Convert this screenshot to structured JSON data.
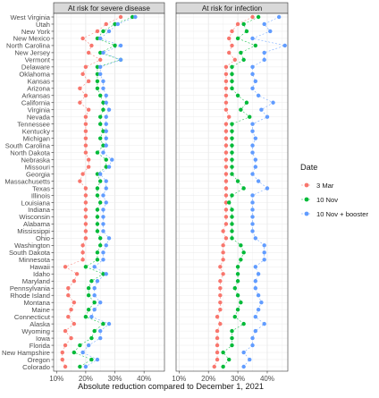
{
  "chart_data": {
    "type": "scatter",
    "xlabel": "Absolute reduction compared to December 1, 2021",
    "ylabel": "",
    "xlim": [
      0.09,
      0.47
    ],
    "x_ticks": [
      0.1,
      0.2,
      0.3,
      0.4
    ],
    "x_tick_labels": [
      "10%",
      "20%",
      "30%",
      "40%"
    ],
    "grid": true,
    "legend": {
      "title": "Date",
      "placement": "right",
      "entries": [
        {
          "name": "3 Mar",
          "color": "#F8766D"
        },
        {
          "name": "10 Nov",
          "color": "#00BA38"
        },
        {
          "name": "10 Nov + booster",
          "color": "#619CFF"
        }
      ]
    },
    "states": [
      "West Virginia",
      "Utah",
      "New York",
      "New Mexico",
      "North Carolina",
      "New Jersey",
      "Vermont",
      "Delaware",
      "Oklahoma",
      "Kansas",
      "Arizona",
      "Arkansas",
      "California",
      "Virginia",
      "Nevada",
      "Tennessee",
      "Kentucky",
      "Michigan",
      "South Carolina",
      "North Dakota",
      "Nebraska",
      "Missouri",
      "Georgia",
      "Massachusetts",
      "Texas",
      "Illinois",
      "Louisiana",
      "Indiana",
      "Wisconsin",
      "Alabama",
      "Mississippi",
      "Ohio",
      "Washington",
      "South Dakota",
      "Minnesota",
      "Hawaii",
      "Idaho",
      "Maryland",
      "Pennsylvania",
      "Rhode Island",
      "Montana",
      "Maine",
      "Connecticut",
      "Alaska",
      "Wyoming",
      "Iowa",
      "Florida",
      "New Hampshire",
      "Oregon",
      "Colorado"
    ],
    "panels": [
      {
        "title": "At risk for severe disease",
        "series": [
          {
            "name": "3 Mar",
            "values": [
              0.32,
              0.27,
              0.24,
              0.19,
              0.22,
              0.21,
              0.25,
              0.2,
              0.19,
              0.21,
              0.18,
              0.2,
              0.18,
              0.21,
              0.2,
              0.2,
              0.2,
              0.2,
              0.2,
              0.2,
              0.21,
              0.21,
              0.19,
              0.18,
              0.2,
              0.2,
              0.2,
              0.2,
              0.2,
              0.2,
              0.2,
              0.2,
              0.19,
              0.19,
              0.19,
              0.13,
              0.17,
              0.16,
              0.14,
              0.14,
              0.16,
              0.15,
              0.14,
              0.16,
              0.13,
              0.15,
              0.13,
              0.12,
              0.12,
              0.13
            ]
          },
          {
            "name": "10 Nov",
            "values": [
              0.36,
              0.3,
              0.26,
              0.24,
              0.3,
              0.25,
              0.32,
              0.24,
              0.24,
              0.24,
              0.24,
              0.25,
              0.26,
              0.26,
              0.25,
              0.25,
              0.26,
              0.25,
              0.26,
              0.24,
              0.27,
              0.27,
              0.24,
              0.25,
              0.24,
              0.24,
              0.25,
              0.24,
              0.24,
              0.24,
              0.24,
              0.25,
              0.25,
              0.24,
              0.24,
              0.2,
              0.26,
              0.22,
              0.21,
              0.21,
              0.23,
              0.21,
              0.2,
              0.26,
              0.23,
              0.22,
              0.18,
              0.16,
              0.22,
              0.18
            ]
          },
          {
            "name": "10 Nov + booster",
            "values": [
              0.37,
              0.31,
              0.28,
              0.25,
              0.32,
              0.26,
              0.32,
              0.25,
              0.25,
              0.26,
              0.26,
              0.27,
              0.27,
              0.28,
              0.27,
              0.27,
              0.27,
              0.27,
              0.27,
              0.26,
              0.29,
              0.28,
              0.25,
              0.27,
              0.27,
              0.26,
              0.27,
              0.26,
              0.26,
              0.26,
              0.26,
              0.28,
              0.27,
              0.26,
              0.26,
              0.23,
              0.27,
              0.24,
              0.23,
              0.23,
              0.25,
              0.23,
              0.22,
              0.28,
              0.25,
              0.25,
              0.21,
              0.19,
              0.24,
              0.2
            ]
          }
        ]
      },
      {
        "title": "At risk for infection",
        "series": [
          {
            "name": "3 Mar",
            "values": [
              0.35,
              0.3,
              0.28,
              0.27,
              0.28,
              0.27,
              0.29,
              0.26,
              0.26,
              0.26,
              0.26,
              0.26,
              0.26,
              0.26,
              0.27,
              0.26,
              0.26,
              0.26,
              0.26,
              0.26,
              0.26,
              0.26,
              0.26,
              0.26,
              0.26,
              0.26,
              0.26,
              0.26,
              0.26,
              0.26,
              0.25,
              0.26,
              0.25,
              0.25,
              0.25,
              0.24,
              0.25,
              0.24,
              0.24,
              0.24,
              0.24,
              0.24,
              0.23,
              0.24,
              0.23,
              0.23,
              0.23,
              0.23,
              0.23,
              0.22
            ]
          },
          {
            "name": "10 Nov",
            "values": [
              0.37,
              0.32,
              0.33,
              0.3,
              0.36,
              0.31,
              0.32,
              0.28,
              0.28,
              0.28,
              0.28,
              0.3,
              0.33,
              0.31,
              0.34,
              0.28,
              0.28,
              0.28,
              0.28,
              0.28,
              0.28,
              0.28,
              0.28,
              0.3,
              0.32,
              0.28,
              0.27,
              0.28,
              0.28,
              0.28,
              0.28,
              0.28,
              0.31,
              0.32,
              0.31,
              0.3,
              0.3,
              0.3,
              0.29,
              0.3,
              0.31,
              0.3,
              0.29,
              0.32,
              0.28,
              0.28,
              0.28,
              0.25,
              0.27,
              0.25
            ]
          },
          {
            "name": "10 Nov + booster",
            "values": [
              0.44,
              0.39,
              0.41,
              0.35,
              0.46,
              0.39,
              0.39,
              0.35,
              0.35,
              0.36,
              0.35,
              0.37,
              0.42,
              0.38,
              0.4,
              0.35,
              0.35,
              0.36,
              0.35,
              0.35,
              0.36,
              0.36,
              0.35,
              0.37,
              0.4,
              0.35,
              0.35,
              0.35,
              0.35,
              0.35,
              0.35,
              0.36,
              0.39,
              0.39,
              0.39,
              0.36,
              0.37,
              0.36,
              0.36,
              0.37,
              0.38,
              0.37,
              0.36,
              0.39,
              0.36,
              0.35,
              0.35,
              0.32,
              0.34,
              0.32
            ]
          }
        ]
      }
    ]
  }
}
